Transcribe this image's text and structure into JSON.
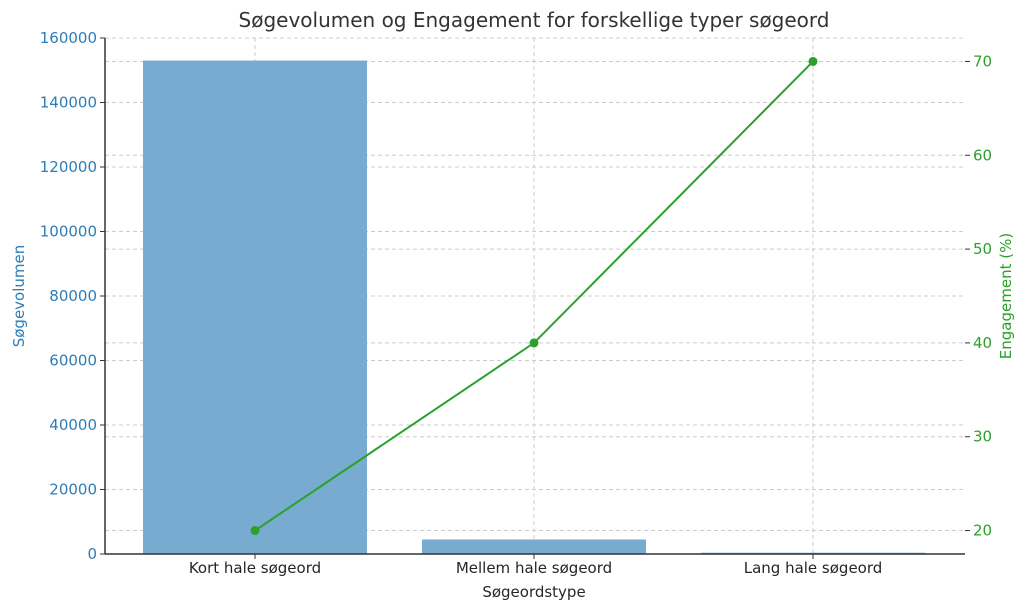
{
  "chart_data": {
    "type": "bar+line",
    "title": "Søgevolumen og Engagement for forskellige typer søgeord",
    "xlabel": "Søgeordstype",
    "categories": [
      "Kort hale søgeord",
      "Mellem hale søgeord",
      "Lang hale søgeord"
    ],
    "series": [
      {
        "name": "Søgevolumen",
        "type": "bar",
        "axis": "left",
        "color": "#77abd0",
        "values": [
          153000,
          4500,
          400
        ]
      },
      {
        "name": "Engagement (%)",
        "type": "line",
        "axis": "right",
        "color": "#2ca02c",
        "marker": "circle",
        "values": [
          20,
          40,
          70
        ]
      }
    ],
    "left_axis": {
      "label": "Søgevolumen",
      "color": "#2e7db9",
      "ylim": [
        0,
        160000
      ],
      "ticks": [
        "0",
        "20000",
        "40000",
        "60000",
        "80000",
        "100000",
        "120000",
        "140000",
        "160000"
      ]
    },
    "right_axis": {
      "label": "Engagement (%)",
      "color": "#2ca02c",
      "ylim": [
        17.5,
        72.5
      ],
      "ticks": [
        "20",
        "30",
        "40",
        "50",
        "60",
        "70"
      ]
    },
    "grid": true
  }
}
